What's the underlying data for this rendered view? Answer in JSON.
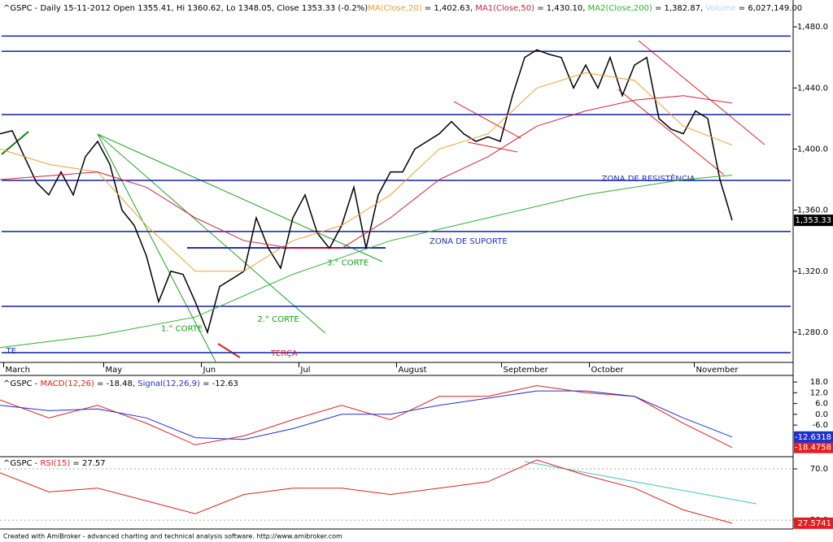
{
  "chart_data": [
    {
      "type": "price",
      "header": [
        {
          "text": "^GSPC - Daily 15-11-2012 Open 1355.41, Hi 1360.62, Lo 1348.05, Close 1353.33 (-0.2%)",
          "color": "#000000"
        },
        {
          "text": "MA(Close,20)",
          "color": "#f0a030"
        },
        {
          "text": " = 1,402.63, ",
          "color": "#000000"
        },
        {
          "text": "MA1(Close,50)",
          "color": "#d02040"
        },
        {
          "text": " = 1,430.10, ",
          "color": "#000000"
        },
        {
          "text": "MA2(Close,200)",
          "color": "#30b030"
        },
        {
          "text": " = 1,382.87, ",
          "color": "#000000"
        },
        {
          "text": "Volume",
          "color": "#a8dcf0"
        },
        {
          "text": " = 6,027,149.00",
          "color": "#000000"
        }
      ],
      "xlim": [
        0,
        65
      ],
      "ylim": [
        1260.3,
        1497.6
      ],
      "xticks": [
        {
          "value": 0.3,
          "label": "March"
        },
        {
          "value": 8.5,
          "label": "May"
        },
        {
          "value": 16.5,
          "label": "Jun"
        },
        {
          "value": 24.5,
          "label": "Jul"
        },
        {
          "value": 32.5,
          "label": "August"
        },
        {
          "value": 41.1,
          "label": "September"
        },
        {
          "value": 48.3,
          "label": "October"
        },
        {
          "value": 56.9,
          "label": "November"
        }
      ],
      "yticks": [
        {
          "value": 1480,
          "label": "1,480.0"
        },
        {
          "value": 1440,
          "label": "1,440.0"
        },
        {
          "value": 1400,
          "label": "1,400.0"
        },
        {
          "value": 1360,
          "label": "1,360.0"
        },
        {
          "value": 1320,
          "label": "1,320.0"
        },
        {
          "value": 1280,
          "label": "1,280.0"
        }
      ],
      "levels": [
        1474,
        1464,
        1422.6,
        1379.5,
        1346,
        1297,
        1266.7
      ],
      "last": {
        "value": 1353.33,
        "label": "1,353.33"
      },
      "series": [
        {
          "name": "Close",
          "color": "#000000",
          "x": [
            0,
            1,
            2,
            3,
            4,
            5,
            6,
            7,
            8,
            9,
            10,
            11,
            12,
            13,
            14,
            15,
            16,
            17,
            18,
            19,
            20,
            21,
            22,
            23,
            24,
            25,
            26,
            27,
            28,
            29,
            30,
            31,
            32,
            33,
            34,
            35,
            36,
            37,
            38,
            39,
            40,
            41,
            42,
            43,
            44,
            45,
            46,
            47,
            48,
            49,
            50,
            51,
            52,
            53,
            54,
            55,
            56,
            57,
            58,
            59,
            60
          ],
          "values": [
            1410,
            1412,
            1395,
            1378,
            1370,
            1385,
            1370,
            1395,
            1405,
            1390,
            1360,
            1350,
            1330,
            1300,
            1320,
            1318,
            1300,
            1280,
            1310,
            1315,
            1320,
            1355,
            1335,
            1322,
            1355,
            1370,
            1345,
            1335,
            1350,
            1375,
            1335,
            1370,
            1385,
            1385,
            1400,
            1405,
            1410,
            1418,
            1410,
            1405,
            1408,
            1405,
            1435,
            1460,
            1465,
            1462,
            1460,
            1440,
            1455,
            1440,
            1460,
            1435,
            1455,
            1460,
            1420,
            1413,
            1410,
            1425,
            1420,
            1380,
            1353.33
          ]
        },
        {
          "name": "MA(Close,20)",
          "color": "#f0a030",
          "x": [
            0,
            4,
            8,
            12,
            16,
            20,
            24,
            28,
            32,
            36,
            40,
            44,
            48,
            52,
            56,
            60
          ],
          "values": [
            1400,
            1390,
            1385,
            1350,
            1320,
            1320,
            1340,
            1350,
            1370,
            1400,
            1410,
            1440,
            1450,
            1445,
            1415,
            1402.63
          ]
        },
        {
          "name": "MA1(Close,50)",
          "color": "#d02040",
          "x": [
            0,
            8,
            12,
            16,
            20,
            24,
            28,
            32,
            36,
            40,
            44,
            48,
            52,
            56,
            60
          ],
          "values": [
            1380,
            1385,
            1375,
            1355,
            1340,
            1335,
            1335,
            1355,
            1380,
            1395,
            1415,
            1425,
            1432,
            1435,
            1430.1
          ]
        },
        {
          "name": "MA2(Close,200)",
          "color": "#30b030",
          "x": [
            0,
            8,
            16,
            24,
            32,
            40,
            48,
            56,
            60
          ],
          "values": [
            1270,
            1278,
            1290,
            1318,
            1340,
            1355,
            1370,
            1380,
            1382.87
          ]
        }
      ],
      "annotations": [
        {
          "text": "ZONA DE RESISTÊNCIA",
          "x": 49.3,
          "y": 1380.5,
          "color": "#2030c0"
        },
        {
          "text": "ZONA DE SUPORTE",
          "x": 35.2,
          "y": 1339.5,
          "color": "#2030c0"
        },
        {
          "text": "3.° CORTE",
          "x": 26.8,
          "y": 1325.5,
          "color": "#10a010"
        },
        {
          "text": "2.° CORTE",
          "x": 21.1,
          "y": 1288.5,
          "color": "#10a010"
        },
        {
          "text": "1.° CORTE",
          "x": 13.2,
          "y": 1282.3,
          "color": "#10a010"
        },
        {
          "text": "TERÇA",
          "x": 22.2,
          "y": 1266.2,
          "color": "#e02020"
        },
        {
          "text": "TE",
          "x": 0.5,
          "y": 1267.8,
          "color": "#2030c0"
        }
      ]
    },
    {
      "type": "macd",
      "header": [
        {
          "text": "^GSPC - ",
          "color": "#000000"
        },
        {
          "text": "MACD(12,26)",
          "color": "#e02020"
        },
        {
          "text": " = -18.48, ",
          "color": "#000000"
        },
        {
          "text": "Signal(12,26,9)",
          "color": "#2030d0"
        },
        {
          "text": " = -12.63",
          "color": "#000000"
        }
      ],
      "xlim": [
        0,
        65
      ],
      "ylim": [
        -23.6,
        21.2
      ],
      "yticks": [
        {
          "value": 18,
          "label": "18.0"
        },
        {
          "value": 12,
          "label": "12.0"
        },
        {
          "value": 6,
          "label": "6.0"
        },
        {
          "value": 0,
          "label": "0.0"
        },
        {
          "value": -6,
          "label": "-6.0"
        }
      ],
      "series": [
        {
          "name": "MACD",
          "color": "#e02020",
          "x": [
            0,
            4,
            8,
            12,
            16,
            20,
            24,
            28,
            32,
            36,
            40,
            44,
            48,
            52,
            56,
            60
          ],
          "values": [
            8,
            -2,
            5,
            -5,
            -17,
            -12,
            -3,
            5,
            -3,
            10,
            10,
            16,
            12,
            10,
            -5,
            -18.4758
          ],
          "last_label": "-18.4758"
        },
        {
          "name": "Signal",
          "color": "#2030d0",
          "x": [
            0,
            4,
            8,
            12,
            16,
            20,
            24,
            28,
            32,
            36,
            40,
            44,
            48,
            52,
            56,
            60
          ],
          "values": [
            5,
            2,
            3,
            -2,
            -13,
            -14,
            -8,
            0,
            0,
            5,
            9,
            13,
            13,
            10,
            -2,
            -12.6318
          ],
          "last_label": "-12.6318"
        }
      ]
    },
    {
      "type": "rsi",
      "header": [
        {
          "text": "^GSPC - ",
          "color": "#000000"
        },
        {
          "text": "RSI(15)",
          "color": "#e02020"
        },
        {
          "text": " = 27.57",
          "color": "#000000"
        }
      ],
      "xlim": [
        0,
        65
      ],
      "ylim": [
        23.7,
        78.9
      ],
      "yticks": [
        {
          "value": 70,
          "label": "70.0"
        },
        {
          "value": 30,
          "label": "30.0"
        }
      ],
      "series": [
        {
          "name": "RSI",
          "color": "#e02020",
          "x": [
            0,
            4,
            8,
            12,
            16,
            20,
            24,
            28,
            32,
            36,
            40,
            44,
            48,
            52,
            56,
            60
          ],
          "values": [
            67,
            52,
            55,
            45,
            35,
            50,
            55,
            55,
            50,
            55,
            60,
            77,
            65,
            55,
            38,
            27.5741
          ],
          "last_label": "27.5741"
        }
      ]
    }
  ],
  "footer": "Created with AmiBroker - advanced charting and technical analysis software. http://www.amibroker.com"
}
